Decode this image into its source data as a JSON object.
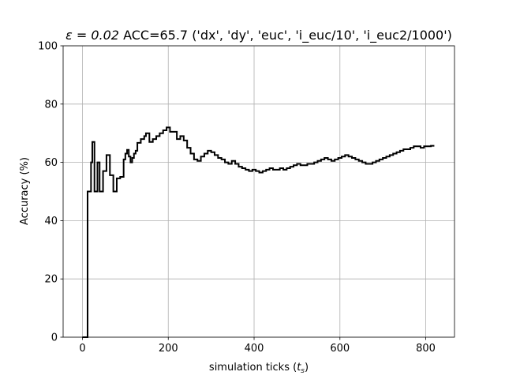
{
  "chart_data": {
    "type": "line",
    "step": true,
    "title_prefix": "ε = 0.02",
    "title_suffix": "ACC=65.7 ('dx', 'dy', 'euc', 'i_euc/10', 'i_euc2/1000')",
    "xlabel_prefix": "simulation ticks (",
    "xlabel_var": "t",
    "xlabel_sub": "s",
    "xlabel_suffix": ")",
    "ylabel": "Accuracy (%)",
    "xlim": [
      -45,
      867
    ],
    "ylim": [
      0,
      100
    ],
    "xticks": [
      0,
      200,
      400,
      600,
      800
    ],
    "yticks": [
      0,
      20,
      40,
      60,
      80,
      100
    ],
    "grid": true,
    "line_color": "#000000",
    "grid_color": "#b0b0b0",
    "series": [
      {
        "x": [
          0,
          12,
          15,
          20,
          23,
          28,
          35,
          40,
          48,
          56,
          64,
          72,
          80,
          88,
          96,
          100,
          104,
          108,
          112,
          116,
          120,
          124,
          128,
          136,
          144,
          148,
          156,
          164,
          172,
          180,
          188,
          196,
          204,
          212,
          220,
          228,
          236,
          244,
          252,
          260,
          268,
          276,
          284,
          292,
          300,
          308,
          316,
          324,
          332,
          340,
          348,
          356,
          364,
          372,
          380,
          388,
          396,
          404,
          412,
          420,
          428,
          436,
          444,
          452,
          460,
          468,
          476,
          484,
          492,
          500,
          508,
          516,
          524,
          532,
          540,
          548,
          556,
          564,
          572,
          580,
          588,
          596,
          604,
          612,
          620,
          628,
          636,
          644,
          652,
          660,
          668,
          676,
          684,
          692,
          700,
          708,
          716,
          724,
          732,
          740,
          748,
          756,
          764,
          772,
          780,
          788,
          796,
          804,
          812,
          820
        ],
        "y": [
          0,
          50,
          50,
          60,
          67,
          50,
          60,
          50,
          57,
          62.5,
          55.6,
          50,
          54.5,
          55,
          61,
          63,
          64.3,
          62,
          60,
          61.5,
          63,
          64,
          66.7,
          68,
          69,
          70,
          67,
          68,
          69,
          70,
          71,
          72,
          70.5,
          70.5,
          68,
          69,
          67.5,
          65,
          63,
          61,
          60.5,
          62,
          63,
          64,
          63.5,
          62.5,
          61.5,
          61,
          60,
          59.5,
          60.5,
          59.5,
          58.5,
          58,
          57.5,
          57,
          57.5,
          57,
          56.5,
          57,
          57.5,
          58,
          57.5,
          57.5,
          58,
          57.5,
          58,
          58.5,
          59,
          59.5,
          59,
          59,
          59.5,
          59.5,
          60,
          60.5,
          61,
          61.5,
          61,
          60.5,
          61,
          61.5,
          62,
          62.5,
          62,
          61.5,
          61,
          60.5,
          60,
          59.5,
          59.5,
          60,
          60.5,
          61,
          61.5,
          62,
          62.5,
          63,
          63.5,
          64,
          64.5,
          64.5,
          65,
          65.5,
          65.5,
          65,
          65.5,
          65.5,
          65.7,
          65.7
        ]
      }
    ]
  }
}
